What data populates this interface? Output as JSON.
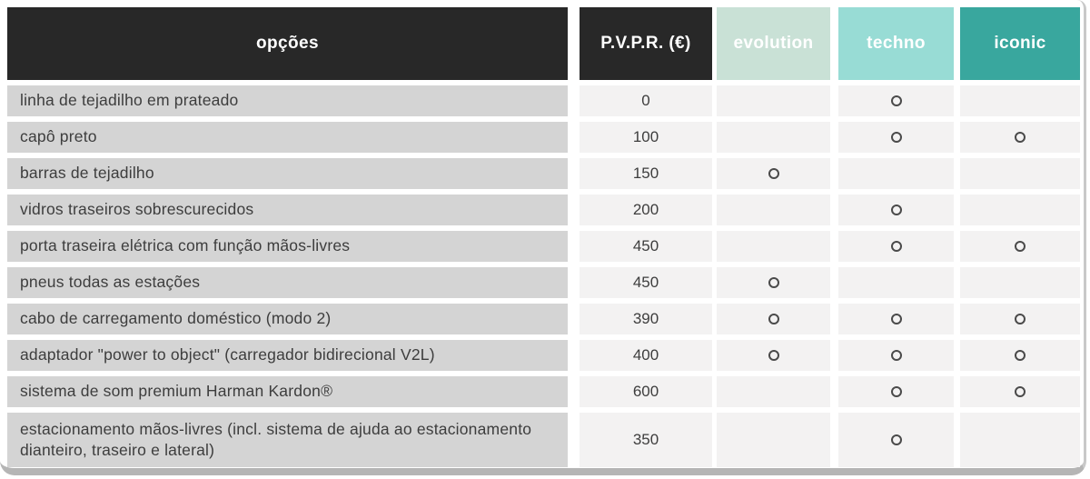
{
  "table": {
    "columns": [
      {
        "label": "opções"
      },
      {
        "label": "P.V.P.R. (€)"
      },
      {
        "label": "evolution"
      },
      {
        "label": "techno"
      },
      {
        "label": "iconic"
      }
    ],
    "included_marker": "○",
    "rows": [
      {
        "option": "linha de tejadilho em prateado",
        "price": "0",
        "marks": {
          "evolution": false,
          "techno": true,
          "iconic": false
        }
      },
      {
        "option": "capô preto",
        "price": "100",
        "marks": {
          "evolution": false,
          "techno": true,
          "iconic": true
        }
      },
      {
        "option": "barras de tejadilho",
        "price": "150",
        "marks": {
          "evolution": true,
          "techno": false,
          "iconic": false
        }
      },
      {
        "option": "vidros traseiros sobrescurecidos",
        "price": "200",
        "marks": {
          "evolution": false,
          "techno": true,
          "iconic": false
        }
      },
      {
        "option": "porta traseira elétrica com função mãos-livres",
        "price": "450",
        "marks": {
          "evolution": false,
          "techno": true,
          "iconic": true
        }
      },
      {
        "option": "pneus todas as estações",
        "price": "450",
        "marks": {
          "evolution": true,
          "techno": false,
          "iconic": false
        }
      },
      {
        "option": "cabo de carregamento doméstico (modo 2)",
        "price": "390",
        "marks": {
          "evolution": true,
          "techno": true,
          "iconic": true
        }
      },
      {
        "option": "adaptador \"power to object\" (carregador bidirecional V2L)",
        "price": "400",
        "marks": {
          "evolution": true,
          "techno": true,
          "iconic": true
        }
      },
      {
        "option": "sistema de som premium Harman Kardon®",
        "price": "600",
        "marks": {
          "evolution": false,
          "techno": true,
          "iconic": true
        }
      },
      {
        "option": "estacionamento mãos-livres (incl. sistema de ajuda ao estacionamento dianteiro, traseiro e lateral)",
        "price": "350",
        "marks": {
          "evolution": false,
          "techno": true,
          "iconic": false
        }
      }
    ]
  },
  "colors": {
    "header_dark": "#282828",
    "evolution": "#c9e1d6",
    "techno": "#98dcd5",
    "iconic": "#39a79e",
    "option_cell": "#d4d4d4",
    "value_cell": "#f3f2f2",
    "text": "#3d3d3d"
  }
}
